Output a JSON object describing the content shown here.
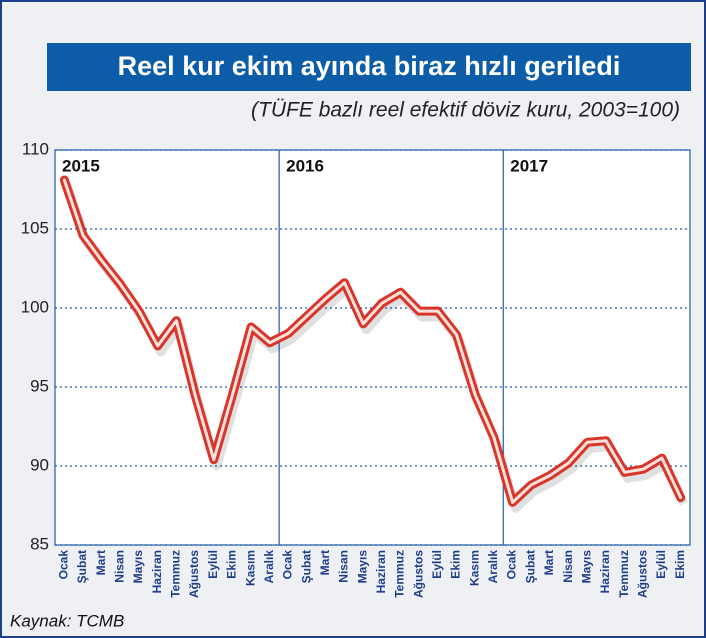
{
  "chart_data": {
    "type": "line",
    "title": "Reel kur ekim ayında biraz hızlı geriledi",
    "subtitle": "(TÜFE bazlı reel efektif döviz kuru, 2003=100)",
    "source": "Kaynak: TCMB",
    "year_labels": [
      "2015",
      "2016",
      "2017"
    ],
    "categories": [
      "Ocak",
      "Şubat",
      "Mart",
      "Nisan",
      "Mayıs",
      "Haziran",
      "Temmuz",
      "Ağustos",
      "Eylül",
      "Ekim",
      "Kasım",
      "Aralık",
      "Ocak",
      "Şubat",
      "Mart",
      "Nisan",
      "Mayıs",
      "Haziran",
      "Temmuz",
      "Ağustos",
      "Eylül",
      "Ekim",
      "Kasım",
      "Aralık",
      "Ocak",
      "Şubat",
      "Mart",
      "Nisan",
      "Mayıs",
      "Haziran",
      "Temmuz",
      "Ağustos",
      "Eylül",
      "Ekim"
    ],
    "values": [
      108.1,
      104.6,
      103.0,
      101.5,
      99.8,
      97.6,
      99.2,
      94.5,
      90.4,
      94.5,
      98.8,
      97.8,
      98.4,
      99.5,
      100.6,
      101.6,
      99.0,
      100.3,
      101.0,
      99.8,
      99.8,
      98.3,
      94.5,
      91.8,
      87.7,
      88.8,
      89.4,
      90.2,
      91.5,
      91.6,
      89.6,
      89.8,
      90.5,
      88.0
    ],
    "color": "#d9352a",
    "ylim": [
      85,
      110
    ],
    "yticks": [
      85,
      90,
      95,
      100,
      105,
      110
    ],
    "grid": true
  }
}
